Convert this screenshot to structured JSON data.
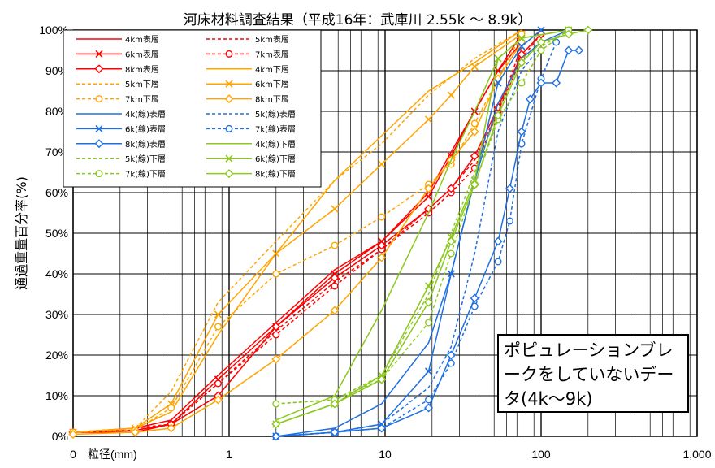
{
  "chart_data": {
    "type": "line",
    "title": "河床材料調査結果（平成16年：武庫川 2.55k ～ 8.9k）",
    "ylabel": "通過重量百分率(%)",
    "xlabel": "粒径(mm)",
    "x_scale": "log",
    "xlim": [
      0.1,
      1000
    ],
    "ylim": [
      0,
      100
    ],
    "x_ticks": [
      "0",
      "1",
      "10",
      "100",
      "1,000"
    ],
    "y_ticks": [
      "0%",
      "10%",
      "20%",
      "30%",
      "40%",
      "50%",
      "60%",
      "70%",
      "80%",
      "90%",
      "100%"
    ],
    "grid": true,
    "legend_placement": "top-left",
    "annotation": "ポピュレーションブレークをしていないデータ(4k～9k)",
    "series": [
      {
        "name": "4km表層",
        "color": "#ff0000",
        "dash": "solid",
        "marker": "none",
        "x": [
          0.1,
          0.25,
          0.425,
          0.85,
          2,
          4.75,
          9.5,
          19,
          26.5,
          37.5,
          53,
          75
        ],
        "y": [
          1,
          2,
          4,
          15,
          28,
          41,
          48,
          60,
          70,
          80,
          90,
          97
        ]
      },
      {
        "name": "5km表層",
        "color": "#ff0000",
        "dash": "dash",
        "marker": "none",
        "x": [
          0.1,
          0.25,
          0.425,
          0.85,
          2,
          4.75,
          9.5,
          19,
          26.5,
          37.5,
          53,
          75
        ],
        "y": [
          1,
          2,
          3,
          13,
          26,
          38,
          46,
          56,
          61,
          68,
          80,
          96
        ]
      },
      {
        "name": "6km表層",
        "color": "#ff0000",
        "dash": "solid",
        "marker": "x",
        "x": [
          0.1,
          0.25,
          0.425,
          0.85,
          2,
          4.75,
          9.5,
          19,
          26.5,
          37.5,
          53,
          75
        ],
        "y": [
          1,
          1.5,
          3,
          14,
          27,
          40,
          48,
          59,
          69,
          80,
          90,
          99
        ]
      },
      {
        "name": "7km表層",
        "color": "#ff0000",
        "dash": "dash",
        "marker": "circle",
        "x": [
          0.1,
          0.25,
          0.425,
          0.85,
          2,
          4.75,
          9.5,
          19,
          26.5,
          37.5,
          53,
          75,
          100
        ],
        "y": [
          1,
          1.5,
          3,
          13,
          25,
          37,
          46,
          55,
          60,
          66,
          80,
          93,
          99
        ]
      },
      {
        "name": "8km表層",
        "color": "#ff0000",
        "dash": "solid",
        "marker": "diamond",
        "x": [
          0.1,
          0.25,
          0.425,
          0.85,
          2,
          4.75,
          9.5,
          19,
          26.5,
          37.5,
          53,
          75,
          100
        ],
        "y": [
          1,
          1,
          3,
          10,
          27,
          39,
          47,
          56,
          61,
          69,
          81,
          94,
          99
        ]
      },
      {
        "name": "4km下層",
        "color": "#ffa500",
        "dash": "solid",
        "marker": "none",
        "x": [
          0.1,
          0.25,
          0.425,
          0.85,
          2,
          4.75,
          9.5,
          19,
          37.5,
          75
        ],
        "y": [
          1,
          2,
          6,
          25,
          45,
          63,
          74,
          85,
          92,
          100
        ]
      },
      {
        "name": "5km下層",
        "color": "#ffa500",
        "dash": "dash",
        "marker": "none",
        "x": [
          0.1,
          0.25,
          0.425,
          0.85,
          2,
          4.75,
          9.5,
          19,
          37.5,
          75
        ],
        "y": [
          1,
          2,
          11,
          33,
          48,
          63,
          72,
          84,
          93,
          100
        ]
      },
      {
        "name": "6km下層",
        "color": "#ffa500",
        "dash": "solid",
        "marker": "x",
        "x": [
          0.1,
          0.25,
          0.425,
          0.85,
          2,
          4.75,
          9.5,
          19,
          26.5,
          37.5,
          75
        ],
        "y": [
          1,
          2,
          8,
          30,
          45,
          56,
          67,
          78,
          84,
          91,
          99
        ]
      },
      {
        "name": "7km下層",
        "color": "#ffa500",
        "dash": "dash",
        "marker": "circle",
        "x": [
          0.1,
          0.25,
          0.425,
          0.85,
          2,
          4.75,
          9.5,
          19,
          26.5,
          37.5,
          75
        ],
        "y": [
          1,
          1.5,
          7,
          27,
          40,
          47,
          54,
          62,
          67,
          77,
          99
        ]
      },
      {
        "name": "8km下層",
        "color": "#ffa500",
        "dash": "solid",
        "marker": "diamond",
        "x": [
          0.1,
          0.25,
          0.425,
          0.85,
          2,
          4.75,
          9.5,
          19,
          26.5,
          37.5,
          53,
          75
        ],
        "y": [
          0.5,
          1,
          2,
          9,
          19,
          31,
          44,
          61,
          68,
          75,
          88,
          97
        ]
      },
      {
        "name": "4k(線)表層",
        "color": "#1f6fe0",
        "dash": "solid",
        "marker": "none",
        "x": [
          2,
          4.75,
          9.5,
          19,
          26.5,
          37.5,
          53,
          75,
          100,
          150
        ],
        "y": [
          0,
          2,
          8,
          23,
          40,
          63,
          82,
          93,
          97,
          100
        ]
      },
      {
        "name": "5k(線)表層",
        "color": "#1f6fe0",
        "dash": "dash",
        "marker": "none",
        "x": [
          2,
          4.75,
          9.5,
          19,
          26.5,
          37.5,
          53,
          75,
          100
        ],
        "y": [
          0,
          1,
          3,
          12,
          22,
          45,
          75,
          90,
          96
        ]
      },
      {
        "name": "6k(線)表層",
        "color": "#1f6fe0",
        "dash": "solid",
        "marker": "x",
        "x": [
          2,
          4.75,
          9.5,
          19,
          26.5,
          37.5,
          53,
          75,
          100
        ],
        "y": [
          0,
          1,
          3,
          16,
          40,
          63,
          87,
          96,
          100
        ]
      },
      {
        "name": "7k(線)表層",
        "color": "#1f6fe0",
        "dash": "dash",
        "marker": "circle",
        "x": [
          2,
          4.75,
          9.5,
          19,
          26.5,
          37.5,
          53,
          63,
          75,
          100,
          125
        ],
        "y": [
          0,
          1,
          2,
          9,
          18,
          32,
          43,
          53,
          72,
          88,
          97
        ]
      },
      {
        "name": "8k(線)表層",
        "color": "#1f6fe0",
        "dash": "solid",
        "marker": "diamond",
        "x": [
          2,
          4.75,
          9.5,
          19,
          26.5,
          37.5,
          53,
          63,
          75,
          85,
          100,
          125,
          150,
          175
        ],
        "y": [
          0,
          1,
          2,
          7,
          20,
          34,
          48,
          61,
          75,
          83,
          87,
          87,
          95,
          95
        ]
      },
      {
        "name": "4k(線)下層",
        "color": "#8cc81e",
        "dash": "solid",
        "marker": "none",
        "x": [
          2,
          4.75,
          9.5,
          19,
          26.5,
          37.5,
          53,
          75,
          150
        ],
        "y": [
          4,
          10,
          31,
          55,
          68,
          80,
          93,
          98,
          100
        ]
      },
      {
        "name": "5k(線)下層",
        "color": "#8cc81e",
        "dash": "dash",
        "marker": "none",
        "x": [
          2,
          4.75,
          9.5,
          19,
          26.5,
          37.5,
          53,
          75,
          150
        ],
        "y": [
          8,
          9,
          15,
          35,
          50,
          65,
          80,
          93,
          100
        ]
      },
      {
        "name": "6k(線)下層",
        "color": "#8cc81e",
        "dash": "solid",
        "marker": "x",
        "x": [
          2,
          4.75,
          9.5,
          19,
          26.5,
          37.5,
          53,
          75,
          150
        ],
        "y": [
          3,
          8,
          15,
          37,
          49,
          63,
          93,
          98,
          100
        ]
      },
      {
        "name": "7k(線)下層",
        "color": "#8cc81e",
        "dash": "dash",
        "marker": "circle",
        "x": [
          2,
          4.75,
          9.5,
          19,
          26.5,
          37.5,
          53,
          75,
          100,
          150
        ],
        "y": [
          8,
          9,
          14,
          28,
          45,
          62,
          78,
          87,
          95,
          100
        ]
      },
      {
        "name": "8k(線)下層",
        "color": "#8cc81e",
        "dash": "solid",
        "marker": "diamond",
        "x": [
          2,
          4.75,
          9.5,
          19,
          26.5,
          37.5,
          53,
          75,
          100,
          150,
          200
        ],
        "y": [
          3,
          8,
          14,
          33,
          48,
          62,
          79,
          92,
          97,
          99,
          100
        ]
      }
    ]
  }
}
